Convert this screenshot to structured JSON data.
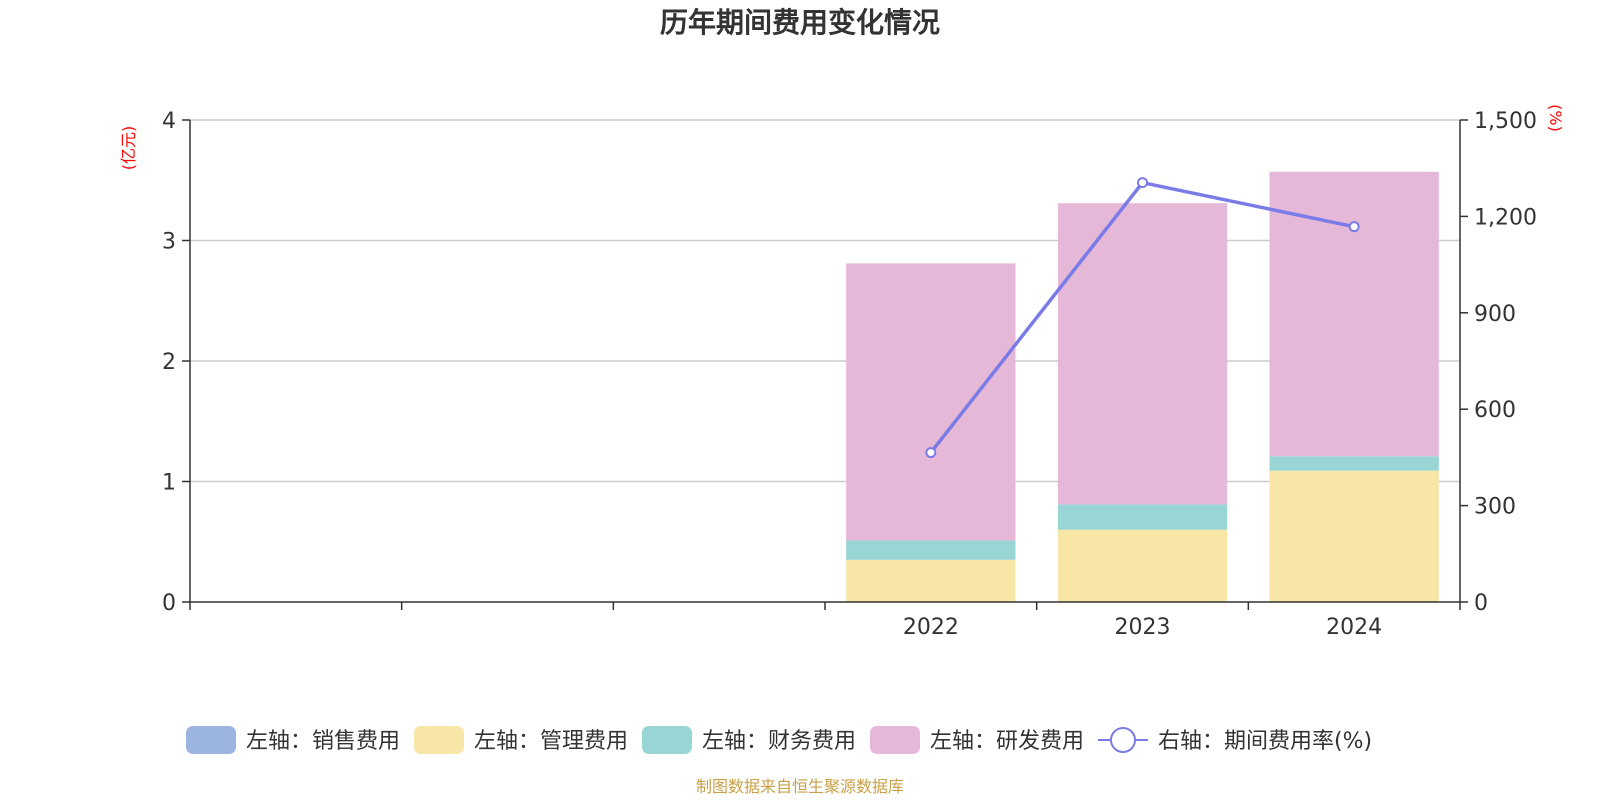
{
  "chart_data": {
    "type": "bar",
    "title": "历年期间费用变化情况",
    "categories": [
      "",
      "",
      "",
      "2022",
      "2023",
      "2024"
    ],
    "stacked": true,
    "left_axis": {
      "unit": "(亿元)",
      "ylim": [
        0,
        4
      ],
      "ticks": [
        "0",
        "1",
        "2",
        "3",
        "4"
      ]
    },
    "right_axis": {
      "unit": "(%)",
      "ylim": [
        0,
        1500
      ],
      "ticks": [
        "0",
        "300",
        "600",
        "900",
        "1,200",
        "1,500"
      ]
    },
    "series": [
      {
        "name": "左轴：销售费用",
        "type": "bar",
        "axis": "left",
        "color": "#9bb5e0",
        "values": [
          null,
          null,
          null,
          0,
          0,
          0
        ]
      },
      {
        "name": "左轴：管理费用",
        "type": "bar",
        "axis": "left",
        "color": "#f7e6a6",
        "values": [
          null,
          null,
          null,
          0.35,
          0.6,
          1.09
        ]
      },
      {
        "name": "左轴：财务费用",
        "type": "bar",
        "axis": "left",
        "color": "#99d5d5",
        "values": [
          null,
          null,
          null,
          0.16,
          0.21,
          0.12
        ]
      },
      {
        "name": "左轴：研发费用",
        "type": "bar",
        "axis": "left",
        "color": "#e6b8d8",
        "values": [
          null,
          null,
          null,
          2.3,
          2.5,
          2.36
        ]
      },
      {
        "name": "右轴：期间费用率(%)",
        "type": "line",
        "axis": "right",
        "color": "#7b7be8",
        "values": [
          null,
          null,
          null,
          465,
          1305,
          1168
        ]
      }
    ],
    "grid": true,
    "legend_position": "bottom"
  },
  "source_note": "制图数据来自恒生聚源数据库"
}
